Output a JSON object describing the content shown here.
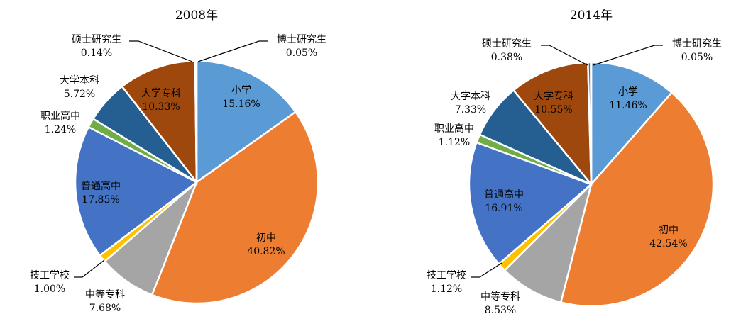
{
  "chart_data": [
    {
      "type": "pie",
      "title": "2008年",
      "categories": [
        "小学",
        "初中",
        "中等专科",
        "技工学校",
        "普通高中",
        "职业高中",
        "大学本科",
        "大学专科",
        "硕士研究生",
        "博士研究生"
      ],
      "values": [
        15.16,
        40.82,
        7.68,
        1.0,
        17.85,
        1.24,
        5.72,
        10.33,
        0.14,
        0.05
      ],
      "value_labels": [
        "15.16%",
        "40.82%",
        "7.68%",
        "1.00%",
        "17.85%",
        "1.24%",
        "5.72%",
        "10.33%",
        "0.14%",
        "0.05%"
      ],
      "colors": [
        "#5b9bd5",
        "#ed7d31",
        "#a5a5a5",
        "#ffc000",
        "#4472c4",
        "#70ad47",
        "#255e91",
        "#9e480e",
        "#636363",
        "#997300"
      ],
      "start_angle_deg": 0,
      "direction": "clockwise"
    },
    {
      "type": "pie",
      "title": "2014年",
      "categories": [
        "小学",
        "初中",
        "中等专科",
        "技工学校",
        "普通高中",
        "职业高中",
        "大学本科",
        "大学专科",
        "硕士研究生",
        "博士研究生"
      ],
      "values": [
        11.46,
        42.54,
        8.53,
        1.12,
        16.91,
        1.12,
        7.33,
        10.55,
        0.38,
        0.05
      ],
      "value_labels": [
        "11.46%",
        "42.54%",
        "8.53%",
        "1.12%",
        "16.91%",
        "1.12%",
        "7.33%",
        "10.55%",
        "0.38%",
        "0.05%"
      ],
      "colors": [
        "#5b9bd5",
        "#ed7d31",
        "#a5a5a5",
        "#ffc000",
        "#4472c4",
        "#70ad47",
        "#255e91",
        "#9e480e",
        "#636363",
        "#997300"
      ],
      "start_angle_deg": 0,
      "direction": "clockwise"
    }
  ]
}
